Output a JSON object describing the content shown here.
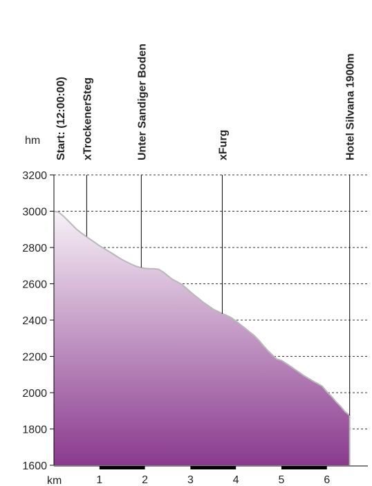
{
  "chart_data": {
    "type": "area",
    "title": "",
    "xlabel": "km",
    "ylabel": "hm",
    "xlim": [
      0,
      6.5
    ],
    "ylim": [
      1600,
      3200
    ],
    "x_ticks": [
      1,
      2,
      3,
      4,
      5,
      6
    ],
    "y_ticks": [
      3200,
      3000,
      2800,
      2600,
      2400,
      2200,
      2000,
      1800,
      1600
    ],
    "grid": true,
    "series": [
      {
        "x": [
          0,
          0.1,
          0.2,
          0.3,
          0.4,
          0.5,
          0.6,
          0.7,
          0.8,
          0.9,
          1.0,
          1.1,
          1.2,
          1.3,
          1.4,
          1.5,
          1.6,
          1.7,
          1.8,
          1.9,
          2.0,
          2.1,
          2.2,
          2.3,
          2.4,
          2.5,
          2.6,
          2.7,
          2.8,
          2.9,
          3.0,
          3.1,
          3.2,
          3.3,
          3.4,
          3.5,
          3.6,
          3.7,
          3.8,
          3.9,
          4.0,
          4.1,
          4.2,
          4.3,
          4.4,
          4.5,
          4.6,
          4.7,
          4.8,
          4.9,
          5.0,
          5.1,
          5.2,
          5.3,
          5.4,
          5.5,
          5.6,
          5.7,
          5.8,
          5.9,
          6.0,
          6.1,
          6.2,
          6.3,
          6.4,
          6.5
        ],
        "values": [
          3000,
          2995,
          2975,
          2950,
          2925,
          2900,
          2880,
          2862,
          2845,
          2828,
          2810,
          2795,
          2780,
          2764,
          2748,
          2733,
          2720,
          2708,
          2697,
          2690,
          2685,
          2683,
          2683,
          2680,
          2665,
          2645,
          2625,
          2612,
          2598,
          2578,
          2555,
          2535,
          2515,
          2495,
          2478,
          2460,
          2448,
          2435,
          2425,
          2413,
          2395,
          2375,
          2355,
          2335,
          2315,
          2290,
          2260,
          2232,
          2208,
          2185,
          2178,
          2162,
          2145,
          2128,
          2110,
          2093,
          2078,
          2063,
          2050,
          2035,
          2005,
          1980,
          1950,
          1925,
          1895,
          1875
        ]
      }
    ],
    "waypoints": [
      {
        "x": 0.0,
        "label": "Start: (12:00:00)"
      },
      {
        "x": 0.72,
        "label": "xTrockenerSteg"
      },
      {
        "x": 1.92,
        "label": "Unter Sandiger Boden"
      },
      {
        "x": 3.7,
        "label": "xFurg"
      },
      {
        "x": 6.5,
        "label": "Hotel Silvana 1900m"
      }
    ],
    "colors": {
      "fill_top": "#f7f1f7",
      "fill_bottom": "#8a3a8e",
      "profile_line": "#b8b8b8",
      "grid": "#333333",
      "scale_bar": "#000000"
    }
  }
}
